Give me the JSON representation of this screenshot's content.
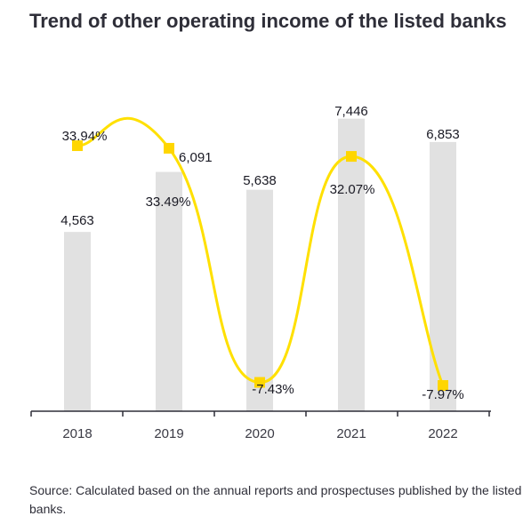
{
  "chart_data": {
    "type": "bar",
    "title": "Trend of other operating income of the listed banks",
    "categories": [
      "2018",
      "2019",
      "2020",
      "2021",
      "2022"
    ],
    "series": [
      {
        "type": "bar",
        "values": [
          4563,
          6091,
          5638,
          7446,
          6853
        ],
        "labels": [
          "4,563",
          "6,091",
          "5,638",
          "7,446",
          "6,853"
        ]
      },
      {
        "type": "line",
        "values": [
          33.94,
          33.49,
          -7.43,
          32.07,
          -7.97
        ],
        "labels": [
          "33.94%",
          "33.49%",
          "-7.43%",
          "32.07%",
          "-7.97%"
        ]
      }
    ],
    "bar_range": [
      0,
      7800
    ],
    "line_range": [
      -12,
      40
    ],
    "source": "Source: Calculated based on the annual reports and prospectuses published by the listed banks.",
    "colors": {
      "bar": "#e1e1e1",
      "line": "#ffe000",
      "marker": "#ffd600",
      "axis": "#2e2e38"
    }
  }
}
